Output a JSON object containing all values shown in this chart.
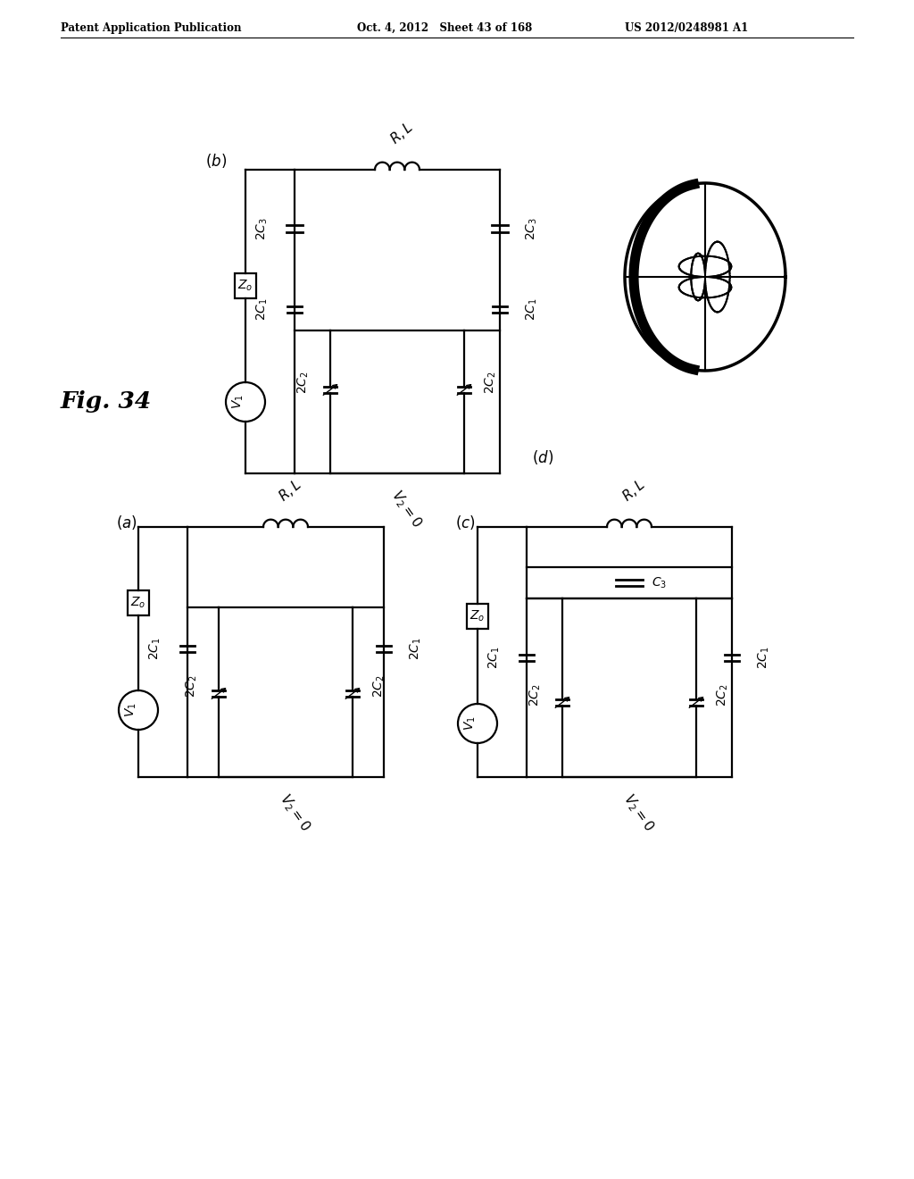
{
  "header_left": "Patent Application Publication",
  "header_mid": "Oct. 4, 2012   Sheet 43 of 168",
  "header_right": "US 2012/0248981 A1",
  "fig_label": "Fig. 34",
  "bg_color": "#ffffff"
}
